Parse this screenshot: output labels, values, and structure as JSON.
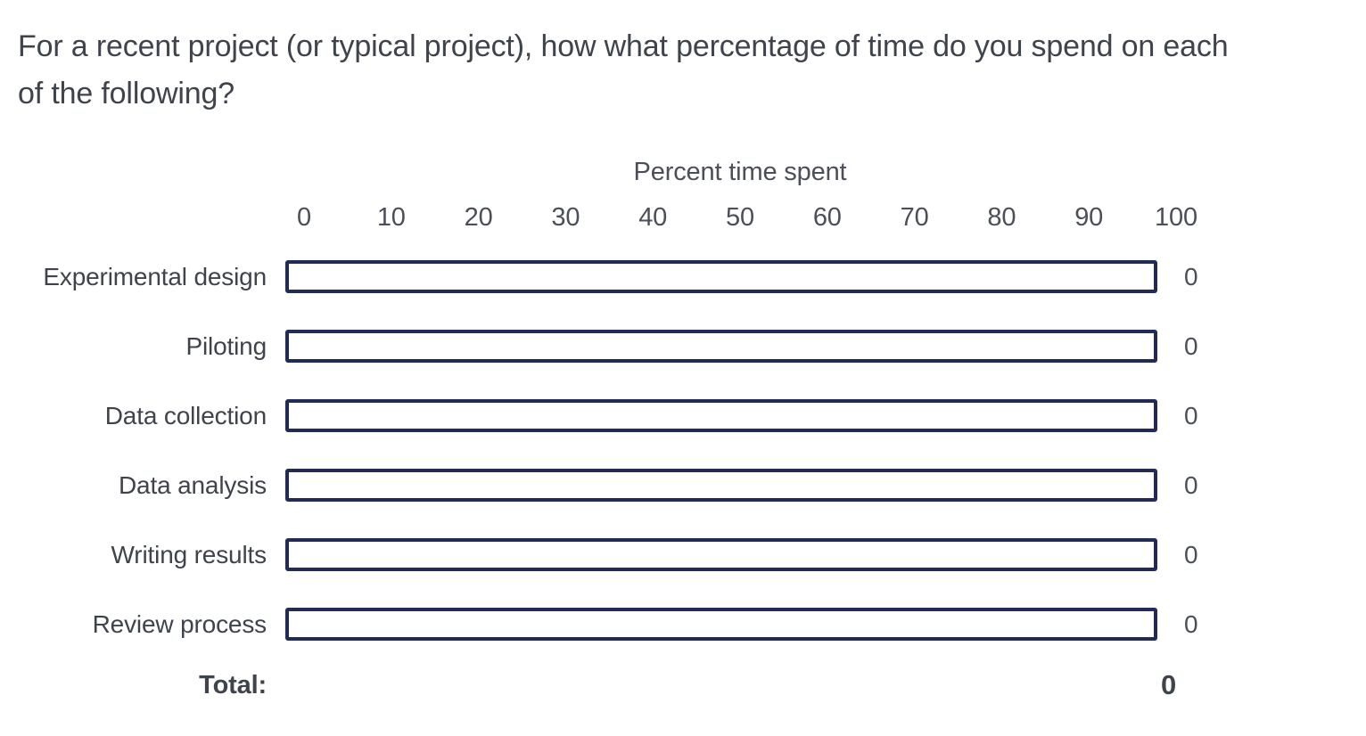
{
  "question": {
    "lines": [
      "For a recent project (or typical project), how what percentage of time do you spend on each",
      "of the following?"
    ]
  },
  "chart_data": {
    "type": "bar",
    "title": "Percent time spent",
    "xlabel": "Percent time spent",
    "categories": [
      "Experimental design",
      "Piloting",
      "Data collection",
      "Data analysis",
      "Writing results",
      "Review process"
    ],
    "values": [
      0,
      0,
      0,
      0,
      0,
      0
    ],
    "axis_ticks": [
      "0",
      "10",
      "20",
      "30",
      "40",
      "50",
      "60",
      "70",
      "80",
      "90",
      "100"
    ],
    "xlim": [
      0,
      100
    ],
    "total_label": "Total:",
    "total_value": "0"
  },
  "colors": {
    "track_border": "#212b56",
    "question_text": "#3f444c",
    "muted_text": "#4b4f58"
  }
}
